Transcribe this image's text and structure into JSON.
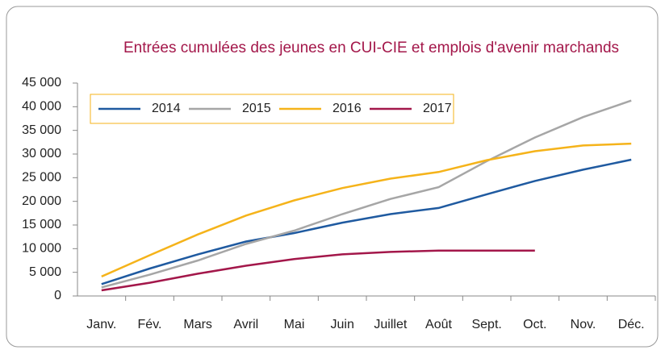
{
  "chart_data": {
    "type": "line",
    "title": "Entrées cumulées des jeunes en CUI-CIE et emplois d'avenir marchands",
    "categories": [
      "Janv.",
      "Fév.",
      "Mars",
      "Avril",
      "Mai",
      "Juin",
      "Juillet",
      "Août",
      "Sept.",
      "Oct.",
      "Nov.",
      "Déc."
    ],
    "series": [
      {
        "name": "2014",
        "color": "#1f5aa0",
        "values": [
          2500,
          5800,
          8800,
          11500,
          13300,
          15500,
          17300,
          18600,
          21500,
          24300,
          26700,
          28800
        ]
      },
      {
        "name": "2015",
        "color": "#a6a6a6",
        "values": [
          1800,
          4500,
          7500,
          11000,
          13800,
          17300,
          20500,
          23000,
          28500,
          33500,
          37800,
          41300
        ]
      },
      {
        "name": "2016",
        "color": "#f5b31a",
        "values": [
          4100,
          8600,
          13000,
          17000,
          20200,
          22800,
          24800,
          26200,
          28700,
          30600,
          31800,
          32200
        ]
      },
      {
        "name": "2017",
        "color": "#a3174a",
        "values": [
          1200,
          2800,
          4700,
          6400,
          7800,
          8800,
          9300,
          9600,
          9600,
          9600,
          null,
          null
        ]
      }
    ],
    "ylim": [
      0,
      45000
    ],
    "yticks": [
      0,
      {
        "value": 5000,
        "label": "5 000"
      },
      {
        "value": 10000,
        "label": "10 000"
      },
      {
        "value": 15000,
        "label": "15 000"
      },
      {
        "value": 20000,
        "label": "20 000"
      },
      {
        "value": 25000,
        "label": "25 000"
      },
      {
        "value": 30000,
        "label": "30 000"
      },
      {
        "value": 35000,
        "label": "35 000"
      },
      {
        "value": 40000,
        "label": "40 000"
      },
      {
        "value": 45000,
        "label": "45 000"
      }
    ],
    "grid": false,
    "legend": "top-left"
  }
}
